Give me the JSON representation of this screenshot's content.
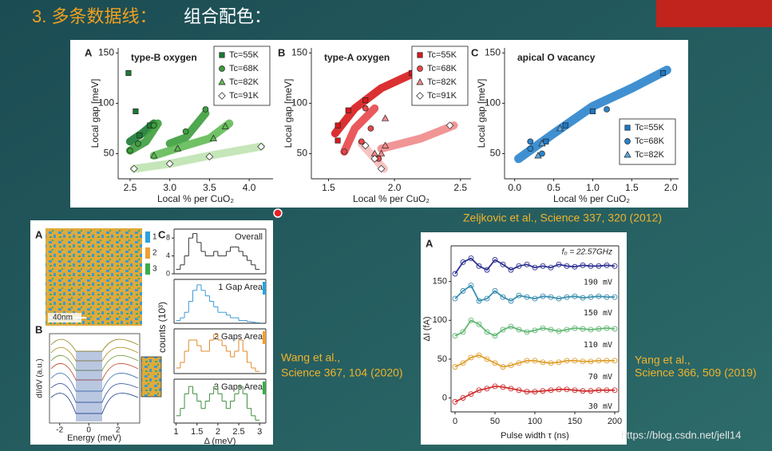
{
  "slide": {
    "title_prefix": "3.  多条数据线：",
    "title_rest": "组合配色：",
    "citation_top": "Zeljkovic et al., Science 337, 320 (2012)",
    "citation_wang": [
      "Wang et al.,",
      "Science 367, 104 (2020)"
    ],
    "citation_yang": [
      "Yang et al.,",
      "Science 366, 509 (2019)"
    ],
    "watermark": "https://blog.csdn.net/jell14"
  },
  "wang_figure": {
    "panel_labels": [
      "A",
      "B",
      "C"
    ],
    "scale_bar": "40nm",
    "area_labels": [
      "1",
      "2",
      "3"
    ],
    "spectra": {
      "ylabel": "dI/dV (a.u.)",
      "xlabel": "Energy (meV)",
      "xlim": [
        -2.7,
        3.5
      ],
      "xticks": [
        -2,
        0,
        2
      ]
    },
    "hist_ylabel": "counts (10³)"
  },
  "chart_data": [
    {
      "type": "scatter",
      "panel": "A",
      "title": "type-B oxygen",
      "xlabel": "Local % per CuO₂",
      "ylabel": "Local gap [meV]",
      "xlim": [
        2.35,
        4.3
      ],
      "xticks": [
        2.5,
        {
          "value": 3,
          "label": "3.0"
        },
        3.5,
        {
          "value": 4,
          "label": "4.0"
        }
      ],
      "ylim": [
        25,
        155
      ],
      "yticks": [
        50,
        100,
        150
      ],
      "legend": "upper right",
      "series": [
        {
          "name": "Tc=55K",
          "color": "#1b7a33",
          "marker": "square",
          "x": [
            2.48,
            2.57,
            2.62,
            2.75
          ],
          "values": [
            130,
            92,
            68,
            78
          ],
          "fit_x": [
            2.5,
            2.65,
            2.8
          ],
          "fit_values": [
            62,
            70,
            80
          ]
        },
        {
          "name": "Tc=68K",
          "color": "#3c9d3c",
          "marker": "circle",
          "x": [
            2.5,
            2.6,
            2.8,
            3.2,
            3.45
          ],
          "values": [
            53,
            60,
            78,
            72,
            94
          ],
          "fit_x": [
            2.5,
            2.7,
            2.85,
            null,
            3.0,
            3.2,
            3.45
          ],
          "fit_values": [
            53,
            62,
            80,
            null,
            60,
            66,
            90
          ]
        },
        {
          "name": "Tc=82K",
          "color": "#62ba55",
          "marker": "triangle",
          "x": [
            2.8,
            3.1,
            3.55,
            3.7
          ],
          "values": [
            48,
            55,
            65,
            77
          ],
          "fit_x": [
            2.8,
            3.2,
            3.5,
            3.75
          ],
          "fit_values": [
            48,
            58,
            65,
            80
          ]
        },
        {
          "name": "Tc=91K",
          "color": "#bfe3b0",
          "marker": "diamond-open",
          "x": [
            2.55,
            3.0,
            3.5,
            4.15
          ],
          "values": [
            35,
            40,
            47,
            57
          ],
          "fit_x": [
            2.55,
            3.0,
            3.5,
            4.15
          ],
          "fit_values": [
            35,
            40,
            48,
            57
          ]
        }
      ]
    },
    {
      "type": "scatter",
      "panel": "B",
      "title": "type-A oxygen",
      "xlabel": "Local % per CuO₂",
      "ylabel": "Local gap [meV]",
      "xlim": [
        1.37,
        2.58
      ],
      "xticks": [
        1.5,
        {
          "value": 2,
          "label": "2.0"
        },
        2.5
      ],
      "ylim": [
        25,
        155
      ],
      "yticks": [
        50,
        100,
        150
      ],
      "legend": "upper right",
      "series": [
        {
          "name": "Tc=55K",
          "color": "#d7191c",
          "marker": "square",
          "x": [
            1.57,
            1.57,
            1.65,
            1.78,
            2.13
          ],
          "values": [
            78,
            63,
            93,
            103,
            130
          ],
          "fit_x": [
            1.55,
            1.7,
            1.9,
            2.15
          ],
          "fit_values": [
            70,
            95,
            115,
            130
          ]
        },
        {
          "name": "Tc=68K",
          "color": "#e8474a",
          "marker": "circle",
          "x": [
            1.62,
            1.78,
            1.75,
            1.88,
            1.82
          ],
          "values": [
            52,
            95,
            62,
            45,
            75
          ],
          "fit_x": [
            1.62,
            1.7,
            1.85
          ],
          "fit_values": [
            52,
            75,
            95
          ]
        },
        {
          "name": "Tc=82K",
          "color": "#f08a8a",
          "marker": "triangle",
          "x": [
            1.85,
            1.93,
            1.93,
            1.9
          ],
          "values": [
            50,
            58,
            85,
            50
          ],
          "fit_x": [
            1.9,
            2.2,
            2.45
          ],
          "fit_values": [
            55,
            65,
            78
          ]
        },
        {
          "name": "Tc=91K",
          "color": "#f5bcbc",
          "marker": "diamond-open",
          "x": [
            1.78,
            1.85,
            1.9,
            2.42
          ],
          "values": [
            58,
            45,
            35,
            78
          ],
          "fit_x": [
            1.75,
            1.92
          ],
          "fit_values": [
            60,
            35
          ]
        }
      ]
    },
    {
      "type": "scatter",
      "panel": "C",
      "title": "apical O vacancy",
      "xlabel": "Local % per CuO₂",
      "ylabel": "Local gap [meV]",
      "xlim": [
        -0.13,
        2.1
      ],
      "xticks": [
        {
          "value": 0,
          "label": "0.0"
        },
        0.5,
        {
          "value": 1,
          "label": "1.0"
        },
        1.5,
        {
          "value": 2,
          "label": "2.0"
        }
      ],
      "ylim": [
        25,
        155
      ],
      "yticks": [
        50,
        100,
        150
      ],
      "legend": "lower right",
      "color": "#2b84cc",
      "fit_x": [
        0.05,
        0.5,
        1.0,
        1.5,
        1.95
      ],
      "fit_values": [
        45,
        70,
        97,
        115,
        133
      ],
      "series": [
        {
          "name": "Tc=55K",
          "color": "#1f78c1",
          "marker": "square",
          "x": [
            0.4,
            0.65,
            1.0,
            1.9
          ],
          "values": [
            62,
            78,
            92,
            130
          ]
        },
        {
          "name": "Tc=68K",
          "color": "#2b84cc",
          "marker": "circle",
          "x": [
            0.2,
            0.2,
            0.35,
            1.18
          ],
          "values": [
            62,
            55,
            50,
            94
          ]
        },
        {
          "name": "Tc=82K",
          "color": "#5aa7e0",
          "marker": "triangle",
          "x": [
            0.3,
            0.35,
            0.58
          ],
          "values": [
            48,
            60,
            75
          ]
        }
      ]
    },
    {
      "type": "histogram",
      "title": "Overall",
      "color": "#333333",
      "bins": [
        1.0,
        1.1,
        1.2,
        1.3,
        1.4,
        1.5,
        1.6,
        1.7,
        1.8,
        1.9,
        2.0,
        2.1,
        2.2,
        2.3,
        2.4,
        2.5,
        2.6,
        2.7,
        2.8,
        2.9,
        3.0
      ],
      "values": [
        1,
        2,
        4,
        8,
        9,
        7,
        5,
        4,
        4,
        5,
        4,
        4,
        5,
        6,
        6,
        5,
        4,
        3,
        2,
        1
      ],
      "xlim": [
        0.95,
        3.15
      ],
      "ylim": [
        0,
        10
      ],
      "yticks": [
        0,
        4,
        8
      ]
    },
    {
      "type": "histogram",
      "title": "1 Gap Area",
      "color": "#3d9ad6",
      "accent": "#29a3de",
      "bins": [
        1.0,
        1.1,
        1.2,
        1.3,
        1.4,
        1.5,
        1.6,
        1.7,
        1.8,
        1.9,
        2.0,
        2.1,
        2.2,
        2.3,
        2.4,
        2.5,
        2.6,
        2.7,
        2.8,
        2.9,
        3.0
      ],
      "values": [
        0.5,
        1,
        2,
        4,
        6,
        7,
        6,
        5,
        4,
        3,
        2,
        2,
        1.5,
        1,
        1,
        0.5,
        0.5,
        0.3,
        0.2,
        0.1
      ],
      "xlim": [
        0.95,
        3.15
      ],
      "ylim": [
        0,
        8
      ]
    },
    {
      "type": "histogram",
      "title": "2 Gaps Area",
      "color": "#e08a2c",
      "accent": "#f0a030",
      "bins": [
        1.0,
        1.1,
        1.2,
        1.3,
        1.4,
        1.5,
        1.6,
        1.7,
        1.8,
        1.9,
        2.0,
        2.1,
        2.2,
        2.3,
        2.4,
        2.5,
        2.6,
        2.7,
        2.8,
        2.9,
        3.0
      ],
      "values": [
        0.5,
        1,
        2,
        3,
        3,
        2.5,
        2,
        2,
        3,
        3.5,
        3,
        2.5,
        2,
        1.5,
        2,
        3,
        2,
        1,
        0.5,
        0.2
      ],
      "xlim": [
        0.95,
        3.15
      ],
      "ylim": [
        0,
        4
      ]
    },
    {
      "type": "histogram",
      "title": "3 Gaps Area",
      "color": "#3f8f3f",
      "accent": "#3cab4a",
      "xlabel": "Δ (meV)",
      "bins": [
        1.0,
        1.1,
        1.2,
        1.3,
        1.4,
        1.5,
        1.6,
        1.7,
        1.8,
        1.9,
        2.0,
        2.1,
        2.2,
        2.3,
        2.4,
        2.5,
        2.6,
        2.7,
        2.8,
        2.9,
        3.0
      ],
      "values": [
        0.5,
        1,
        2,
        2.5,
        2,
        1.5,
        1,
        1.5,
        2,
        2.5,
        2,
        1.5,
        1,
        1.5,
        2,
        2.5,
        2,
        1,
        0.5,
        0.2
      ],
      "xlim": [
        0.95,
        3.15
      ],
      "ylim": [
        0,
        3
      ],
      "xticks": [
        1,
        1.5,
        2,
        2.5,
        3
      ]
    },
    {
      "type": "line",
      "panel": "A",
      "annotation": "f₀ = 22.57GHz",
      "xlabel": "Pulse width τ (ns)",
      "ylabel": "ΔI (fA)",
      "xlim": [
        -5,
        205
      ],
      "xticks": [
        0,
        50,
        100,
        150,
        200
      ],
      "ylim": [
        -18,
        196
      ],
      "yticks": [
        0,
        50,
        100,
        150
      ],
      "x": [
        0,
        10,
        20,
        30,
        40,
        50,
        60,
        70,
        80,
        90,
        100,
        110,
        120,
        130,
        140,
        150,
        160,
        170,
        180,
        190,
        200
      ],
      "series": [
        {
          "name": "190 mV",
          "color": "#2e3192",
          "values": [
            160,
            175,
            180,
            170,
            165,
            178,
            172,
            165,
            170,
            172,
            168,
            170,
            168,
            172,
            170,
            169,
            171,
            170,
            170,
            171,
            170
          ]
        },
        {
          "name": "150 mV",
          "color": "#3a8fb0",
          "values": [
            128,
            138,
            145,
            125,
            128,
            138,
            130,
            125,
            132,
            130,
            128,
            131,
            130,
            128,
            130,
            131,
            129,
            130,
            131,
            130,
            130
          ]
        },
        {
          "name": "110 mV",
          "color": "#62b874",
          "values": [
            80,
            85,
            100,
            95,
            85,
            80,
            88,
            92,
            88,
            85,
            87,
            90,
            88,
            86,
            88,
            90,
            89,
            88,
            89,
            90,
            89
          ]
        },
        {
          "name": "70 mV",
          "color": "#e0a030",
          "values": [
            40,
            45,
            52,
            55,
            50,
            45,
            40,
            42,
            45,
            48,
            48,
            46,
            45,
            46,
            48,
            48,
            47,
            47,
            48,
            48,
            48
          ]
        },
        {
          "name": "30 mV",
          "color": "#d03030",
          "values": [
            -5,
            0,
            5,
            10,
            12,
            15,
            14,
            12,
            10,
            8,
            8,
            9,
            10,
            11,
            11,
            10,
            9,
            9,
            10,
            10,
            10
          ]
        }
      ]
    }
  ]
}
